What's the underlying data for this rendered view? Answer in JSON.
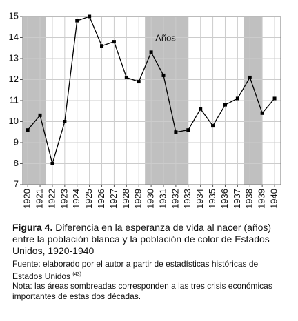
{
  "chart_data": {
    "type": "line",
    "x_label": "Años",
    "x": [
      1920,
      1921,
      1922,
      1923,
      1924,
      1925,
      1926,
      1927,
      1928,
      1929,
      1930,
      1931,
      1932,
      1933,
      1934,
      1935,
      1936,
      1937,
      1938,
      1939,
      1940
    ],
    "series": [
      {
        "color": "#000000",
        "values": [
          9.6,
          10.3,
          8.0,
          10.0,
          14.8,
          15.0,
          13.6,
          13.8,
          12.1,
          11.9,
          13.3,
          12.2,
          9.5,
          9.6,
          10.6,
          9.8,
          10.8,
          11.1,
          12.1,
          10.4,
          11.1
        ]
      }
    ],
    "xlim": [
      1919.6,
      1940.5
    ],
    "xticks": [
      1920,
      1921,
      1922,
      1923,
      1924,
      1925,
      1926,
      1927,
      1928,
      1929,
      1930,
      1931,
      1932,
      1933,
      1934,
      1935,
      1936,
      1937,
      1938,
      1939,
      1940
    ],
    "ylim": [
      7,
      15
    ],
    "yticks": [
      7,
      8,
      9,
      10,
      11,
      12,
      13,
      14,
      15
    ],
    "grid": true,
    "shaded_periods": [
      [
        1919.6,
        1921.5
      ],
      [
        1929.5,
        1933
      ],
      [
        1937.5,
        1939
      ]
    ],
    "shade_color": "#c0c0c0"
  },
  "caption": {
    "label": "Figura 4.",
    "title": " Diferencia en la esperanza de vida al nacer (años) entre la población blanca y la población de color de Estados Unidos, 1920-1940",
    "source": "Fuente: elaborado por el autor a partir de estadísticas históricas de Estados Unidos",
    "source_ref": "(43)",
    "note": "Nota: las áreas sombreadas corresponden a las tres crisis económicas importantes de estas dos décadas."
  }
}
